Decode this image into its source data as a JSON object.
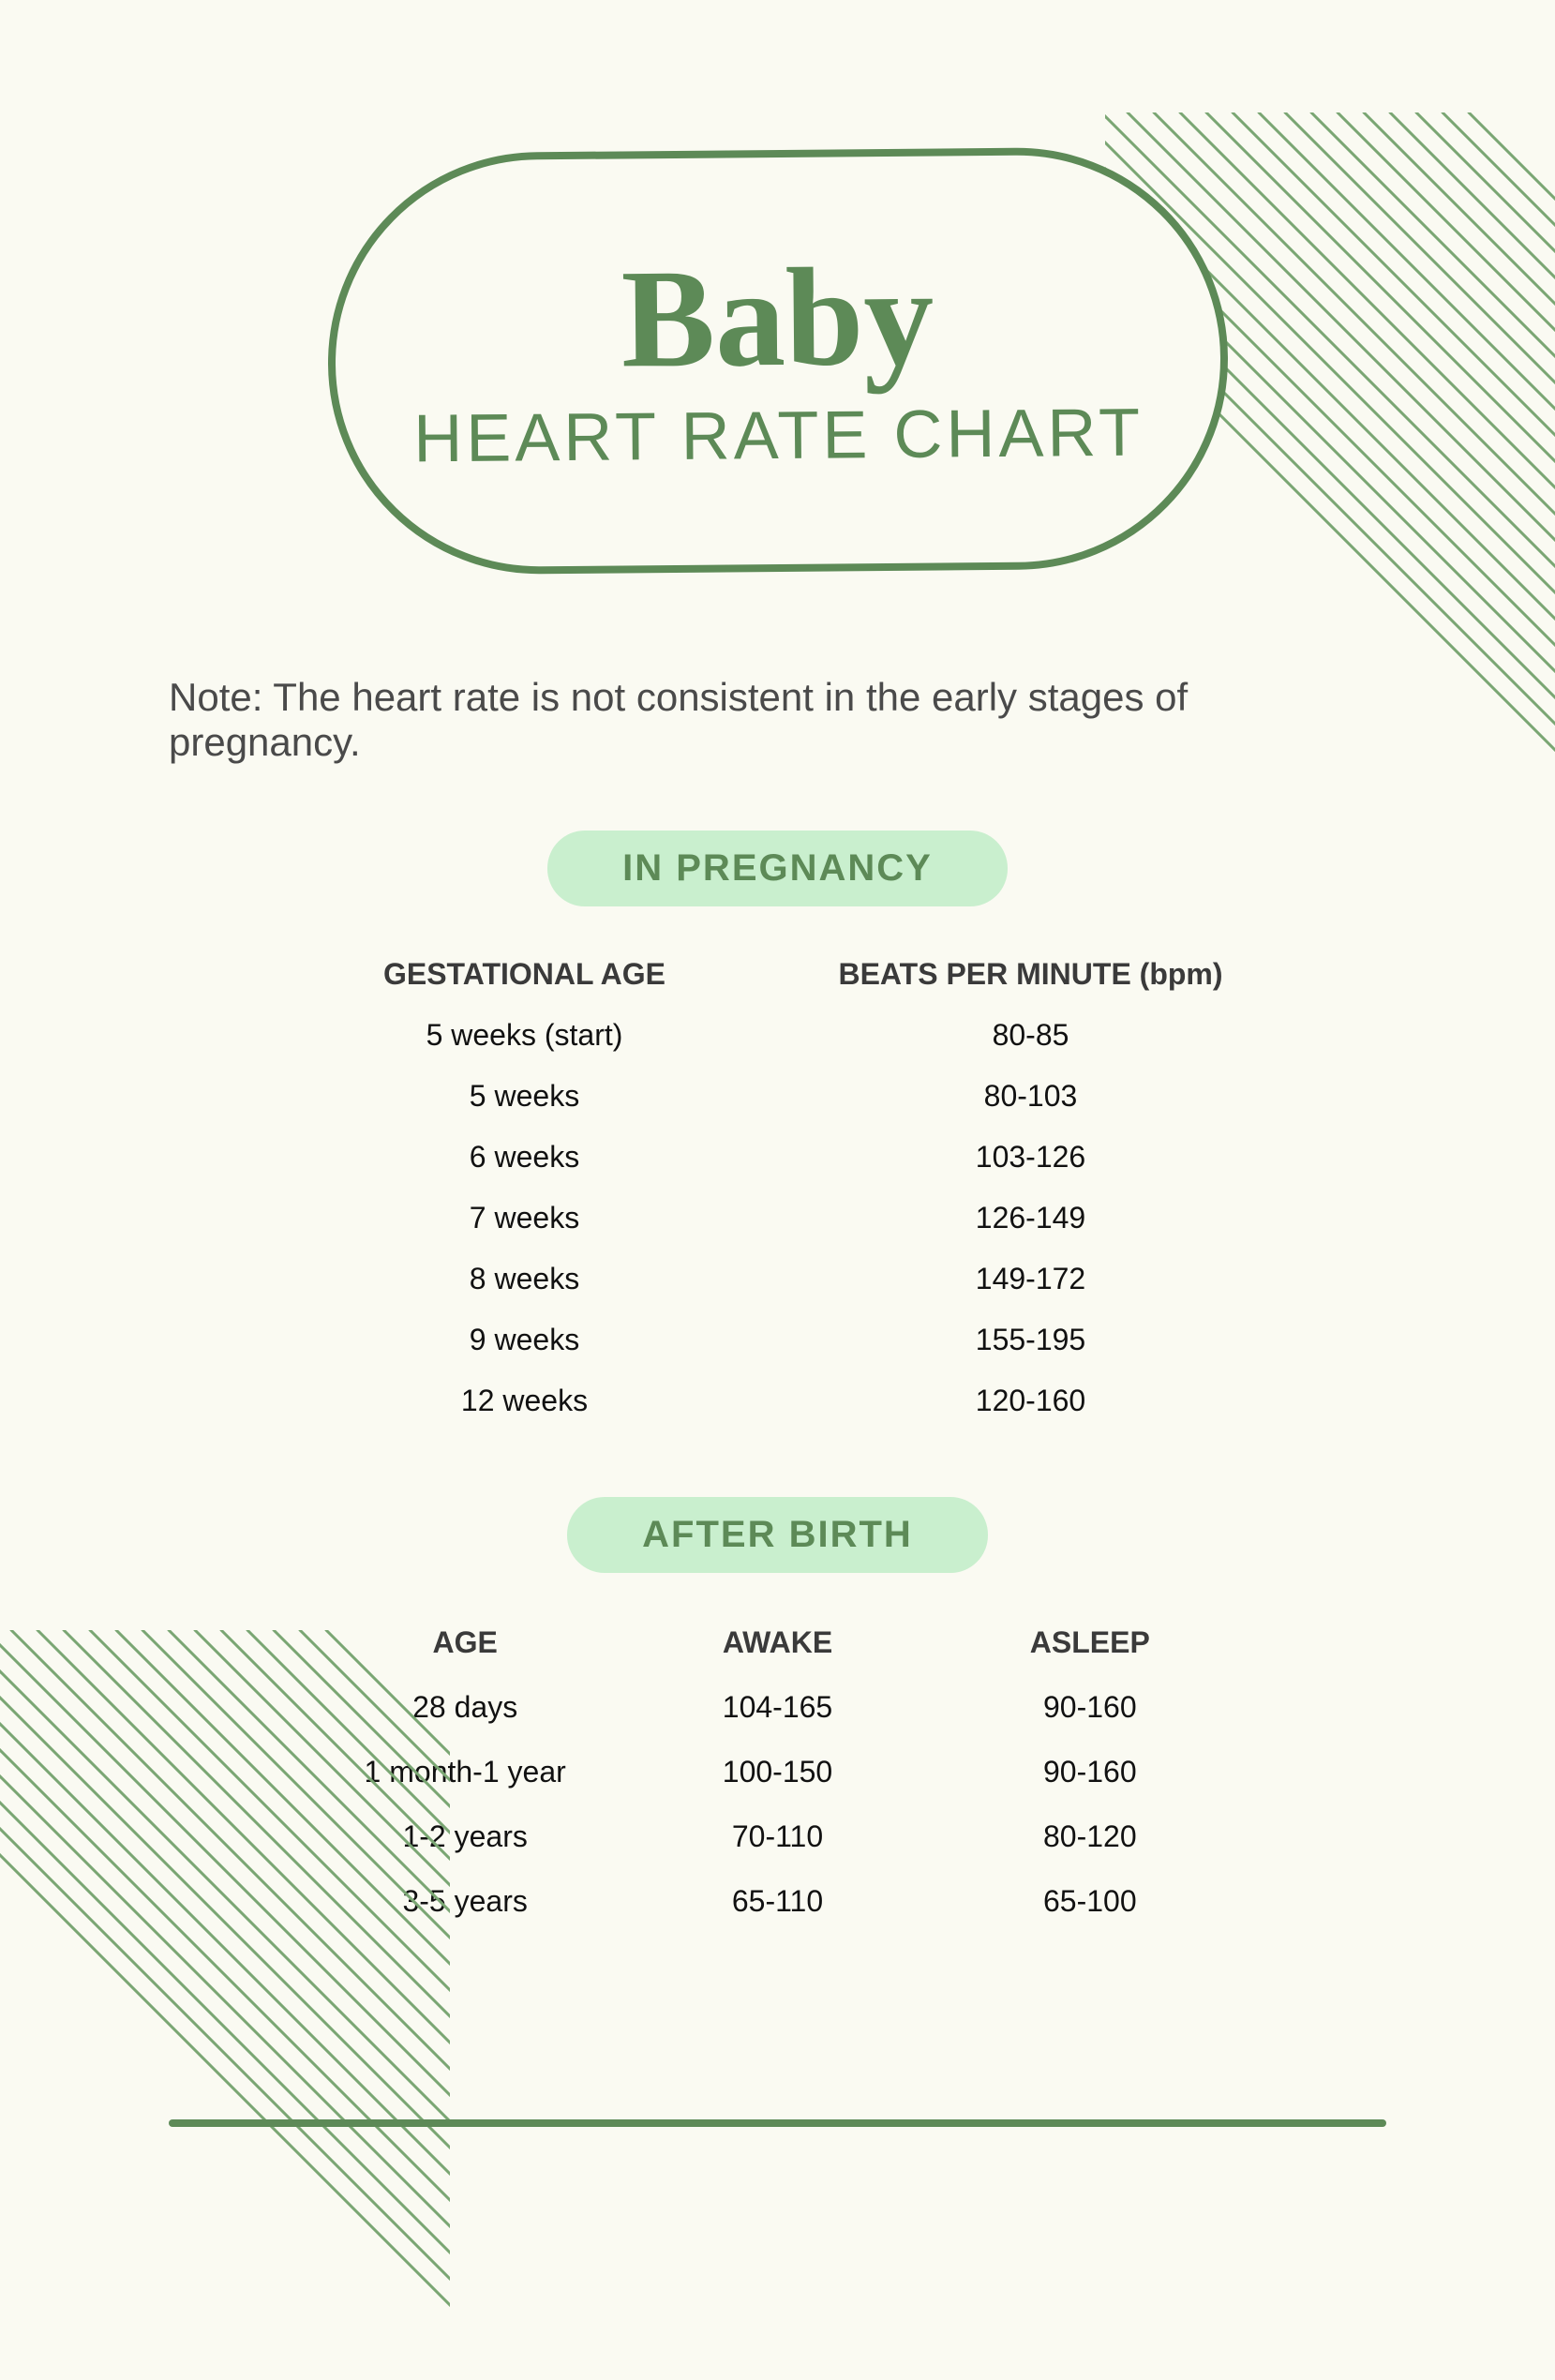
{
  "colors": {
    "background": "#fafaf2",
    "accent": "#5d8a57",
    "pill_bg": "#c9efce",
    "text_dark": "#3a3a3a",
    "text_body": "#4a4a4a",
    "hatch_stroke": "#7aa673"
  },
  "decorations": {
    "hatch_line_count": 22,
    "hatch_stroke_width": 3,
    "hatch_angle_deg": 45
  },
  "title": {
    "script": "Baby",
    "sub": "HEART RATE CHART",
    "script_fontsize": 150,
    "sub_fontsize": 72,
    "border_width": 8,
    "border_radius": 230
  },
  "note": "Note: The heart rate is not consistent in the early stages of pregnancy.",
  "note_fontsize": 42,
  "sections": {
    "pregnancy": {
      "label": "IN PREGNANCY",
      "columns": [
        "GESTATIONAL AGE",
        "BEATS PER MINUTE (bpm)"
      ],
      "rows": [
        [
          "5 weeks (start)",
          "80-85"
        ],
        [
          "5 weeks",
          "80-103"
        ],
        [
          "6 weeks",
          "103-126"
        ],
        [
          "7 weeks",
          "126-149"
        ],
        [
          "8 weeks",
          "149-172"
        ],
        [
          "9 weeks",
          "155-195"
        ],
        [
          "12 weeks",
          "120-160"
        ]
      ]
    },
    "after_birth": {
      "label": "AFTER BIRTH",
      "columns": [
        "AGE",
        "AWAKE",
        "ASLEEP"
      ],
      "rows": [
        [
          "28 days",
          "104-165",
          "90-160"
        ],
        [
          "1 month-1 year",
          "100-150",
          "90-160"
        ],
        [
          "1-2 years",
          "70-110",
          "80-120"
        ],
        [
          "3-5 years",
          "65-110",
          "65-100"
        ]
      ]
    }
  },
  "pill_style": {
    "fontsize": 40,
    "padding_v": 18,
    "padding_h": 80,
    "radius": 40
  },
  "table_style": {
    "header_fontsize": 32,
    "cell_fontsize": 32,
    "row_padding": 14
  },
  "footer_rule": {
    "height": 8,
    "color": "#5d8a57"
  }
}
